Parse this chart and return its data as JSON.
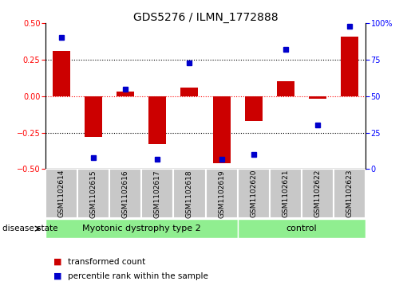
{
  "title": "GDS5276 / ILMN_1772888",
  "samples": [
    "GSM1102614",
    "GSM1102615",
    "GSM1102616",
    "GSM1102617",
    "GSM1102618",
    "GSM1102619",
    "GSM1102620",
    "GSM1102621",
    "GSM1102622",
    "GSM1102623"
  ],
  "transformed_count": [
    0.31,
    -0.28,
    0.03,
    -0.33,
    0.06,
    -0.46,
    -0.17,
    0.1,
    -0.02,
    0.41
  ],
  "percentile_rank": [
    90,
    8,
    55,
    7,
    73,
    7,
    10,
    82,
    30,
    98
  ],
  "groups": [
    {
      "label": "Myotonic dystrophy type 2",
      "start": 0,
      "end": 6,
      "color": "#90EE90"
    },
    {
      "label": "control",
      "start": 6,
      "end": 10,
      "color": "#90EE90"
    }
  ],
  "bar_color": "#CC0000",
  "point_color": "#0000CC",
  "ylim_left": [
    -0.5,
    0.5
  ],
  "ylim_right": [
    0,
    100
  ],
  "yticks_left": [
    -0.5,
    -0.25,
    0.0,
    0.25,
    0.5
  ],
  "yticks_right": [
    0,
    25,
    50,
    75,
    100
  ],
  "hlines_dotted": [
    -0.25,
    0.25
  ],
  "hline_red": 0.0,
  "disease_state_label": "disease state",
  "legend_items": [
    {
      "label": "transformed count",
      "color": "#CC0000"
    },
    {
      "label": "percentile rank within the sample",
      "color": "#0000CC"
    }
  ],
  "sample_cell_color": "#C8C8C8",
  "sample_cell_edge": "#FFFFFF",
  "title_fontsize": 10,
  "tick_fontsize": 7,
  "sample_fontsize": 6.5,
  "group_fontsize": 8,
  "legend_fontsize": 7.5,
  "disease_fontsize": 7.5
}
